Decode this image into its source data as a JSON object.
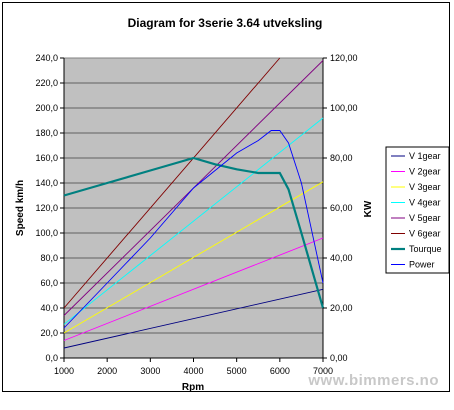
{
  "chart_data": {
    "type": "line",
    "title": "Diagram for 3serie 3.64 utveksling",
    "xlabel": "Rpm",
    "ylabel_left": "Speed km/h",
    "ylabel_right": "KW",
    "xlim": [
      1000,
      7000
    ],
    "ylim_left": [
      0,
      240
    ],
    "ylim_right": [
      0,
      120
    ],
    "x_ticks": [
      "1000",
      "2000",
      "3000",
      "4000",
      "5000",
      "6000",
      "7000"
    ],
    "y_ticks_left": [
      "0,0",
      "20,0",
      "40,0",
      "60,0",
      "80,0",
      "100,0",
      "120,0",
      "140,0",
      "160,0",
      "180,0",
      "200,0",
      "220,0",
      "240,0"
    ],
    "y_ticks_right": [
      "0,00",
      "20,00",
      "40,00",
      "60,00",
      "80,00",
      "100,00",
      "120,00"
    ],
    "grid": "horizontal",
    "plot_background": "#c0c0c0",
    "legend_position": "right",
    "series": [
      {
        "name": "V 1gear",
        "axis": "left",
        "color": "#000080",
        "x": [
          1000,
          7000
        ],
        "y": [
          8,
          55
        ]
      },
      {
        "name": "V 2gear",
        "axis": "left",
        "color": "#ff00ff",
        "x": [
          1000,
          7000
        ],
        "y": [
          14,
          96
        ]
      },
      {
        "name": "V 3gear",
        "axis": "left",
        "color": "#ffff00",
        "x": [
          1000,
          7000
        ],
        "y": [
          20,
          141
        ]
      },
      {
        "name": "V 4gear",
        "axis": "left",
        "color": "#00ffff",
        "x": [
          1000,
          7000
        ],
        "y": [
          27,
          192
        ]
      },
      {
        "name": "V 5gear",
        "axis": "left",
        "color": "#800080",
        "x": [
          1000,
          7000
        ],
        "y": [
          34,
          238
        ]
      },
      {
        "name": "V 6gear",
        "axis": "left",
        "color": "#800000",
        "x": [
          1000,
          6000
        ],
        "y": [
          40,
          240
        ]
      },
      {
        "name": "Tourque",
        "axis": "left",
        "color": "#008080",
        "x": [
          1000,
          2000,
          3000,
          4000,
          4500,
          5000,
          5500,
          6000,
          6200,
          6500,
          7000
        ],
        "y": [
          130,
          140,
          150,
          160,
          155,
          151,
          148,
          148,
          135,
          100,
          40
        ]
      },
      {
        "name": "Power",
        "axis": "right",
        "color": "#0000ff",
        "x": [
          1000,
          2000,
          3000,
          4000,
          5000,
          5500,
          5800,
          6000,
          6200,
          6500,
          7000
        ],
        "y": [
          12,
          30,
          48,
          68,
          82,
          87,
          91,
          91,
          86,
          70,
          30
        ]
      }
    ]
  },
  "watermark": "www.bimmers.no"
}
